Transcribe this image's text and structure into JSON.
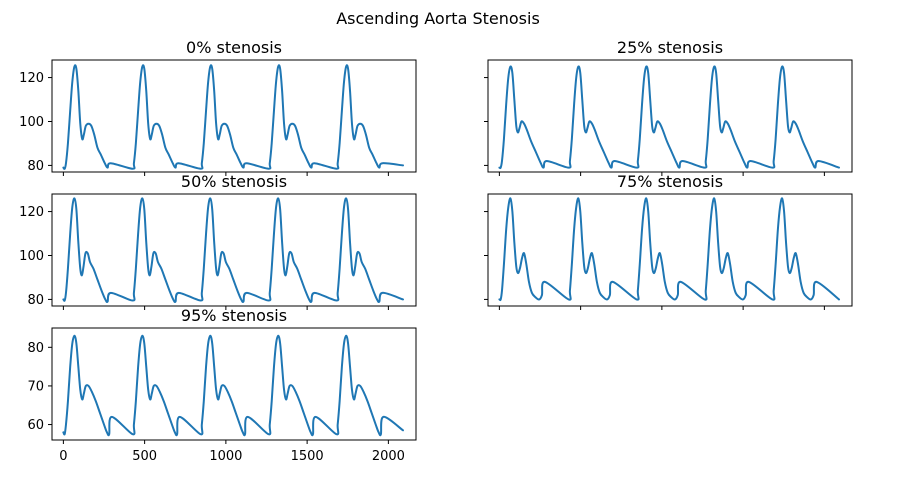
{
  "figure": {
    "title": "Ascending Aorta Stenosis"
  },
  "chart_data": [
    {
      "type": "line",
      "title": "0% stenosis",
      "xlabel": "",
      "ylabel": "",
      "xlim": [
        -70,
        2170
      ],
      "ylim": [
        77,
        128
      ],
      "xticks": [
        0,
        500,
        1000,
        1500,
        2000
      ],
      "show_xtick_labels": false,
      "yticks": [
        80,
        100,
        120
      ],
      "grid": false,
      "color": "#1f77b4",
      "beats": 5,
      "period": 418,
      "start_value": 79,
      "end": [
        2090,
        80
      ],
      "waveform": [
        [
          0,
          79
        ],
        [
          8,
          78.5
        ],
        [
          16,
          81
        ],
        [
          28,
          90
        ],
        [
          42,
          105
        ],
        [
          55,
          118
        ],
        [
          68,
          125
        ],
        [
          80,
          124
        ],
        [
          92,
          114
        ],
        [
          104,
          99
        ],
        [
          116,
          92
        ],
        [
          126,
          94
        ],
        [
          138,
          98
        ],
        [
          155,
          99
        ],
        [
          172,
          98
        ],
        [
          190,
          94
        ],
        [
          210,
          88
        ],
        [
          230,
          85
        ],
        [
          255,
          81
        ],
        [
          272,
          79
        ],
        [
          292,
          81
        ]
      ]
    },
    {
      "type": "line",
      "title": "25% stenosis",
      "xlabel": "",
      "ylabel": "",
      "xlim": [
        -70,
        2170
      ],
      "ylim": [
        77,
        128
      ],
      "xticks": [
        0,
        500,
        1000,
        1500,
        2000
      ],
      "show_xtick_labels": false,
      "yticks": [
        80,
        100,
        120
      ],
      "grid": false,
      "color": "#1f77b4",
      "beats": 5,
      "period": 418,
      "start_value": 79,
      "end": [
        2090,
        79
      ],
      "waveform": [
        [
          0,
          79
        ],
        [
          8,
          79
        ],
        [
          16,
          82
        ],
        [
          28,
          92
        ],
        [
          42,
          108
        ],
        [
          55,
          120
        ],
        [
          68,
          125
        ],
        [
          80,
          122
        ],
        [
          92,
          110
        ],
        [
          104,
          98
        ],
        [
          114,
          95
        ],
        [
          124,
          97
        ],
        [
          136,
          100
        ],
        [
          152,
          99
        ],
        [
          170,
          96
        ],
        [
          195,
          91
        ],
        [
          225,
          86
        ],
        [
          255,
          81
        ],
        [
          272,
          79
        ],
        [
          292,
          82
        ]
      ]
    },
    {
      "type": "line",
      "title": "50% stenosis",
      "xlabel": "",
      "ylabel": "",
      "xlim": [
        -70,
        2170
      ],
      "ylim": [
        77,
        128
      ],
      "xticks": [
        0,
        500,
        1000,
        1500,
        2000
      ],
      "show_xtick_labels": false,
      "yticks": [
        80,
        100,
        120
      ],
      "grid": false,
      "color": "#1f77b4",
      "beats": 5,
      "period": 418,
      "start_value": 80,
      "end": [
        2090,
        80
      ],
      "waveform": [
        [
          0,
          80
        ],
        [
          8,
          79.5
        ],
        [
          16,
          83
        ],
        [
          28,
          94
        ],
        [
          42,
          110
        ],
        [
          55,
          122
        ],
        [
          68,
          126
        ],
        [
          80,
          121
        ],
        [
          92,
          106
        ],
        [
          104,
          94
        ],
        [
          114,
          91
        ],
        [
          124,
          95
        ],
        [
          136,
          101
        ],
        [
          150,
          101
        ],
        [
          164,
          97
        ],
        [
          185,
          94
        ],
        [
          210,
          89
        ],
        [
          235,
          84
        ],
        [
          258,
          80
        ],
        [
          272,
          79
        ],
        [
          292,
          83
        ]
      ]
    },
    {
      "type": "line",
      "title": "75% stenosis",
      "xlabel": "",
      "ylabel": "",
      "xlim": [
        -70,
        2170
      ],
      "ylim": [
        77,
        128
      ],
      "xticks": [
        0,
        500,
        1000,
        1500,
        2000
      ],
      "show_xtick_labels": false,
      "yticks": [
        80,
        100,
        120
      ],
      "grid": false,
      "color": "#1f77b4",
      "beats": 5,
      "period": 418,
      "start_value": 80,
      "end": [
        2090,
        80
      ],
      "waveform": [
        [
          0,
          80
        ],
        [
          8,
          80
        ],
        [
          16,
          84
        ],
        [
          28,
          96
        ],
        [
          42,
          112
        ],
        [
          55,
          122
        ],
        [
          68,
          126
        ],
        [
          80,
          120
        ],
        [
          92,
          106
        ],
        [
          104,
          95
        ],
        [
          114,
          92
        ],
        [
          126,
          94
        ],
        [
          140,
          99
        ],
        [
          152,
          101
        ],
        [
          166,
          96
        ],
        [
          182,
          88
        ],
        [
          200,
          83
        ],
        [
          222,
          81
        ],
        [
          245,
          80
        ],
        [
          262,
          82
        ],
        [
          280,
          88
        ]
      ]
    },
    {
      "type": "line",
      "title": "95% stenosis",
      "xlabel": "",
      "ylabel": "",
      "xlim": [
        -70,
        2170
      ],
      "ylim": [
        56,
        85
      ],
      "xticks": [
        0,
        500,
        1000,
        1500,
        2000
      ],
      "xtick_labels": [
        "0",
        "500",
        "1000",
        "1500",
        "2000"
      ],
      "show_xtick_labels": true,
      "yticks": [
        60,
        70,
        80
      ],
      "grid": false,
      "color": "#1f77b4",
      "beats": 5,
      "period": 418,
      "start_value": 58,
      "end": [
        2090,
        58.5
      ],
      "waveform": [
        [
          0,
          58
        ],
        [
          8,
          57.5
        ],
        [
          16,
          60
        ],
        [
          28,
          66
        ],
        [
          42,
          75
        ],
        [
          55,
          81
        ],
        [
          68,
          83
        ],
        [
          80,
          81
        ],
        [
          92,
          75
        ],
        [
          104,
          69
        ],
        [
          116,
          66.5
        ],
        [
          126,
          68
        ],
        [
          138,
          70
        ],
        [
          155,
          70
        ],
        [
          175,
          68.5
        ],
        [
          200,
          66
        ],
        [
          225,
          63
        ],
        [
          250,
          60
        ],
        [
          268,
          58
        ],
        [
          282,
          57.5
        ],
        [
          298,
          62
        ]
      ]
    }
  ]
}
